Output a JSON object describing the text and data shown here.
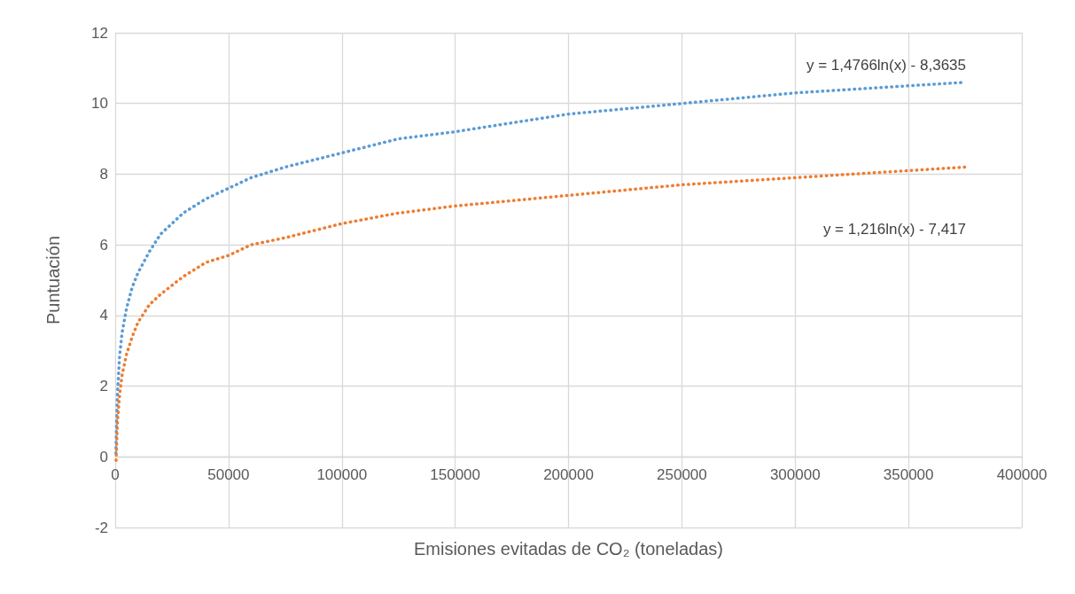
{
  "chart_data": {
    "type": "line",
    "xlabel": "Emisiones evitadas de CO₂ (toneladas)",
    "ylabel": "Puntuación",
    "series": [
      {
        "color": "#5b9bd5",
        "x": [
          300,
          500,
          1000,
          2000,
          3000,
          5000,
          7500,
          10000,
          15000,
          20000,
          30000,
          40000,
          50000,
          60000,
          75000,
          100000,
          125000,
          150000,
          200000,
          250000,
          300000,
          350000,
          375000
        ],
        "values": [
          0.1,
          0.8,
          1.8,
          2.9,
          3.5,
          4.2,
          4.8,
          5.2,
          5.8,
          6.3,
          6.9,
          7.3,
          7.6,
          7.9,
          8.2,
          8.6,
          9.0,
          9.2,
          9.7,
          10.0,
          10.3,
          10.5,
          10.6
        ]
      },
      {
        "color": "#ed7d31",
        "x": [
          400,
          500,
          1000,
          2000,
          3000,
          5000,
          7500,
          10000,
          15000,
          20000,
          30000,
          40000,
          50000,
          60000,
          75000,
          100000,
          125000,
          150000,
          200000,
          250000,
          300000,
          350000,
          375000
        ],
        "values": [
          -0.1,
          0.1,
          1.0,
          1.8,
          2.3,
          2.9,
          3.4,
          3.8,
          4.3,
          4.6,
          5.1,
          5.5,
          5.7,
          6.0,
          6.2,
          6.6,
          6.9,
          7.1,
          7.4,
          7.7,
          7.9,
          8.1,
          8.2
        ]
      }
    ],
    "annotations": [
      "y = 1,4766ln(x) - 8,3635",
      "y = 1,216ln(x) - 7,417"
    ],
    "xlim": [
      0,
      400000
    ],
    "xticks": [
      0,
      50000,
      100000,
      150000,
      200000,
      250000,
      300000,
      350000,
      400000
    ],
    "ylim": [
      -2,
      12
    ],
    "yticks": [
      -2,
      0,
      2,
      4,
      6,
      8,
      10,
      12
    ],
    "grid": true,
    "marker": "none",
    "line_style": "dotted"
  }
}
